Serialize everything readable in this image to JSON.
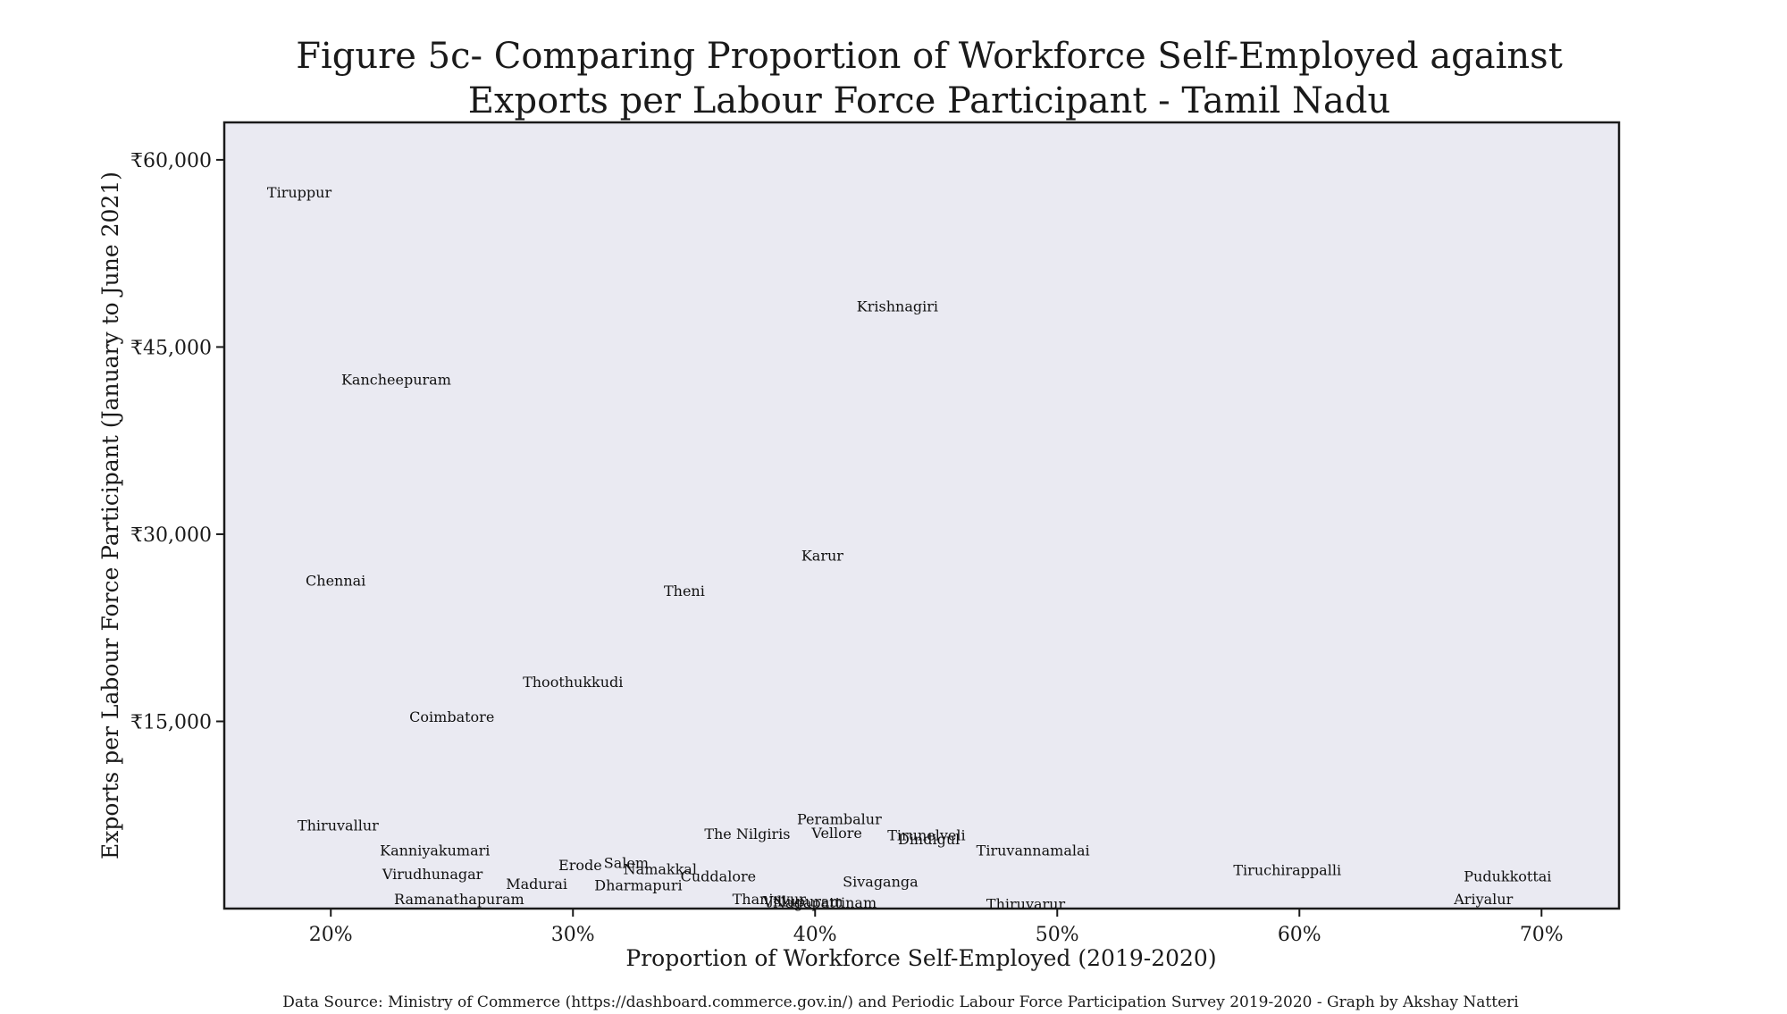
{
  "chart_data": {
    "type": "scatter",
    "title_lines": [
      "Figure 5c- Comparing Proportion of Workforce Self-Employed against",
      "Exports per Labour Force Participant  - Tamil Nadu"
    ],
    "xlabel": "Proportion of Workforce Self-Employed (2019-2020)",
    "ylabel": "Exports per Labour Force Participant (January to June 2021)",
    "source": "Data Source:  Ministry of Commerce (https://dashboard.commerce.gov.in/) and Periodic Labour Force Participation Survey 2019-2020 - Graph by Akshay Natteri",
    "xlim": [
      0.156,
      0.732
    ],
    "ylim": [
      0,
      63000
    ],
    "x_ticks": [
      {
        "value": 0.2,
        "label": "20%"
      },
      {
        "value": 0.3,
        "label": "30%"
      },
      {
        "value": 0.4,
        "label": "40%"
      },
      {
        "value": 0.5,
        "label": "50%"
      },
      {
        "value": 0.6,
        "label": "60%"
      },
      {
        "value": 0.7,
        "label": "70%"
      }
    ],
    "y_ticks": [
      {
        "value": 15000,
        "label": "₹15,000"
      },
      {
        "value": 30000,
        "label": "₹30,000"
      },
      {
        "value": 45000,
        "label": "₹45,000"
      },
      {
        "value": 60000,
        "label": "₹60,000"
      }
    ],
    "grid": false,
    "background_color": "#eaeaf2",
    "points": [
      {
        "label": "Tiruppur",
        "x": 0.187,
        "y": 57400
      },
      {
        "label": "Krishnagiri",
        "x": 0.434,
        "y": 48300
      },
      {
        "label": "Kancheepuram",
        "x": 0.227,
        "y": 42400
      },
      {
        "label": "Karur",
        "x": 0.403,
        "y": 28300
      },
      {
        "label": "Chennai",
        "x": 0.202,
        "y": 26300
      },
      {
        "label": "Theni",
        "x": 0.346,
        "y": 25500
      },
      {
        "label": "Thoothukkudi",
        "x": 0.3,
        "y": 18200
      },
      {
        "label": "Coimbatore",
        "x": 0.25,
        "y": 15400
      },
      {
        "label": "Thiruvallur",
        "x": 0.203,
        "y": 6700
      },
      {
        "label": "Perambalur",
        "x": 0.41,
        "y": 7200
      },
      {
        "label": "Vellore",
        "x": 0.409,
        "y": 6100
      },
      {
        "label": "The Nilgiris",
        "x": 0.372,
        "y": 6000
      },
      {
        "label": "Tirunelveli",
        "x": 0.446,
        "y": 5900
      },
      {
        "label": "Dindigul",
        "x": 0.447,
        "y": 5600
      },
      {
        "label": "Tiruvannamalai",
        "x": 0.49,
        "y": 4700
      },
      {
        "label": "Kanniyakumari",
        "x": 0.243,
        "y": 4700
      },
      {
        "label": "Erode",
        "x": 0.303,
        "y": 3500
      },
      {
        "label": "Salem",
        "x": 0.322,
        "y": 3700
      },
      {
        "label": "Namakkal",
        "x": 0.336,
        "y": 3200
      },
      {
        "label": "Cuddalore",
        "x": 0.36,
        "y": 2600
      },
      {
        "label": "Virudhunagar",
        "x": 0.242,
        "y": 2800
      },
      {
        "label": "Madurai",
        "x": 0.285,
        "y": 2000
      },
      {
        "label": "Dharmapuri",
        "x": 0.327,
        "y": 1900
      },
      {
        "label": "Sivaganga",
        "x": 0.427,
        "y": 2200
      },
      {
        "label": "Tiruchirappalli",
        "x": 0.595,
        "y": 3100
      },
      {
        "label": "Pudukkottai",
        "x": 0.686,
        "y": 2600
      },
      {
        "label": "Ramanathapuram",
        "x": 0.253,
        "y": 800
      },
      {
        "label": "Thanjavur",
        "x": 0.381,
        "y": 800
      },
      {
        "label": "Villupuram",
        "x": 0.395,
        "y": 600
      },
      {
        "label": "Nagapattinam",
        "x": 0.404,
        "y": 500
      },
      {
        "label": "Thiruvarur",
        "x": 0.487,
        "y": 400
      },
      {
        "label": "Ariyalur",
        "x": 0.676,
        "y": 800
      }
    ]
  }
}
